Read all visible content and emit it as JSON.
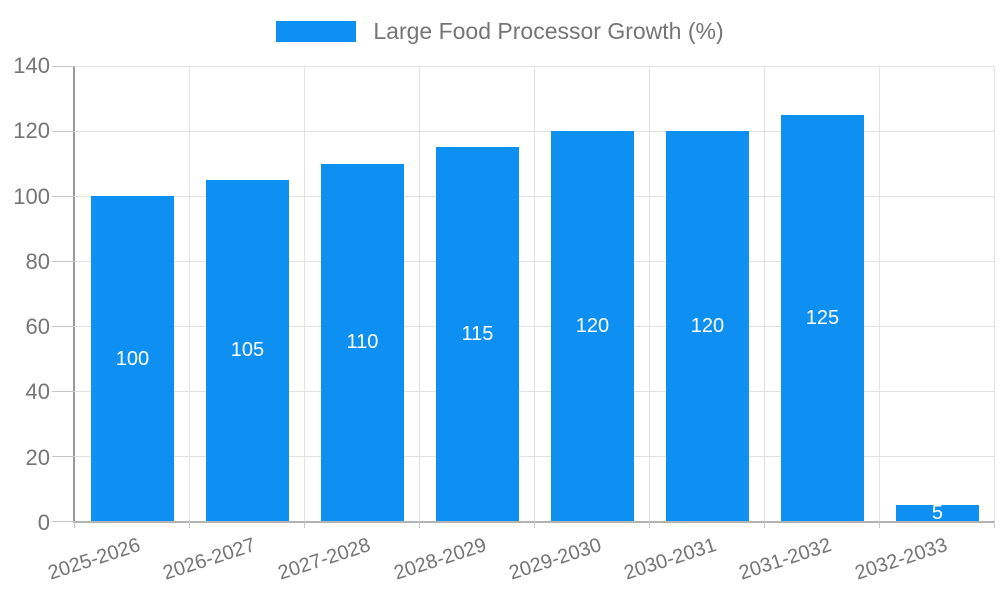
{
  "chart_data": {
    "type": "bar",
    "title": "",
    "legend_label": "Large Food Processor Growth (%)",
    "legend_position": "top",
    "categories": [
      "2025-2026",
      "2026-2027",
      "2027-2028",
      "2028-2029",
      "2029-2030",
      "2030-2031",
      "2031-2032",
      "2032-2033"
    ],
    "values": [
      100,
      105,
      110,
      115,
      120,
      120,
      125,
      5
    ],
    "yticks": [
      0,
      20,
      40,
      60,
      80,
      100,
      120,
      140
    ],
    "ylim": [
      0,
      140
    ],
    "xlabel": "",
    "ylabel": "",
    "grid": true,
    "bar_color": "#0e8ff2",
    "bar_label_color": "#ffffff",
    "axis_text_color": "#757575"
  }
}
